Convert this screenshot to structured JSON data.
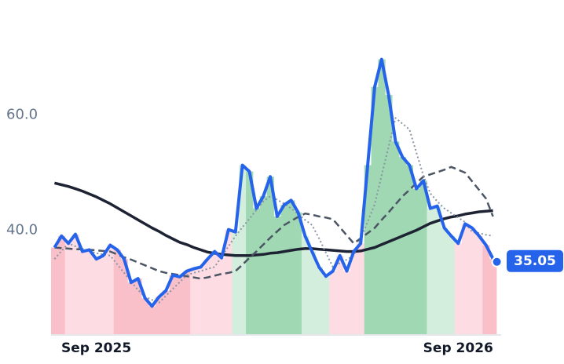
{
  "chart_data": {
    "type": "line",
    "categories": [
      null,
      null,
      null,
      null,
      null,
      null,
      "Sep 2025",
      null,
      null,
      null,
      null,
      null,
      null,
      null,
      null,
      null,
      null,
      null,
      null,
      null,
      null,
      null,
      null,
      null,
      null,
      null,
      null,
      null,
      null,
      null,
      null,
      null,
      null,
      null,
      null,
      null,
      null,
      null,
      null,
      null,
      null,
      null,
      null,
      null,
      null,
      null,
      null,
      null,
      null,
      null,
      null,
      null,
      null,
      null,
      null,
      null,
      null,
      null,
      "Sep 2026",
      null,
      null,
      null,
      null,
      null
    ],
    "series": [
      {
        "color": "#2563eb",
        "style": "solid",
        "width": 4,
        "values": [
          37,
          39,
          37.7,
          39.3,
          36.3,
          36.6,
          35,
          35.6,
          37.4,
          36.6,
          35,
          30.9,
          31.6,
          28.2,
          26.8,
          28.4,
          29.5,
          32.2,
          31.9,
          32.9,
          33.3,
          33.6,
          35,
          36.3,
          35.2,
          40.1,
          39.7,
          51.3,
          50.2,
          43.8,
          45.9,
          49.3,
          42.4,
          44.4,
          45.2,
          43.1,
          39,
          36.3,
          33.6,
          32,
          32.9,
          35.6,
          32.9,
          36.3,
          37.7,
          51.3,
          64.9,
          69.7,
          63.5,
          55.4,
          52.7,
          51.3,
          47.2,
          48.6,
          43.8,
          44.2,
          40.4,
          39,
          37.7,
          41.1,
          40.4,
          39,
          37.4,
          35.05
        ]
      },
      {
        "color": "#8a94a3",
        "style": "dotted",
        "width": 2,
        "values": [
          35,
          36.4,
          37.7,
          37.2,
          36.8,
          36.4,
          36,
          35.8,
          35.6,
          34.1,
          32.6,
          31.1,
          29.6,
          28.5,
          27.9,
          27.4,
          28.6,
          29.8,
          31,
          32.2,
          32.6,
          32.9,
          33.3,
          33.6,
          35.4,
          37.2,
          39,
          40.5,
          42,
          43.5,
          45,
          45.9,
          45.3,
          44.6,
          43.8,
          42.8,
          41.8,
          40.9,
          38.6,
          36.1,
          33.6,
          34.3,
          34.9,
          35.6,
          38.6,
          41.5,
          44.5,
          49.5,
          54.5,
          59.5,
          58.5,
          57.5,
          53.5,
          49.5,
          46.4,
          45,
          43.8,
          43,
          42.2,
          41.4,
          39.7,
          39.5,
          39.2,
          39
        ]
      },
      {
        "color": "#4b5563",
        "style": "dashed",
        "width": 2.5,
        "values": [
          37,
          36.9,
          36.8,
          36.7,
          36.7,
          36.6,
          36.5,
          36.4,
          36.3,
          35.8,
          35.3,
          34.9,
          34.4,
          33.9,
          33.4,
          32.9,
          32.6,
          32.4,
          32.2,
          32,
          31.8,
          31.6,
          31.8,
          32.1,
          32.4,
          32.6,
          32.9,
          34,
          35.2,
          36.3,
          37.5,
          38.7,
          39.8,
          40.9,
          41.6,
          42.3,
          42.9,
          42.7,
          42.4,
          42.2,
          41.9,
          40.5,
          39.1,
          37.7,
          38.6,
          39.5,
          40.4,
          41.8,
          43.1,
          44.5,
          45.9,
          47,
          48.2,
          49.3,
          49.7,
          50.1,
          50.5,
          51,
          50.5,
          50,
          48.5,
          47,
          45.5,
          42.4
        ]
      },
      {
        "color": "#1e2333",
        "style": "solid",
        "width": 3.5,
        "values": [
          48.2,
          47.9,
          47.6,
          47.2,
          46.8,
          46.3,
          45.8,
          45.2,
          44.6,
          43.9,
          43.2,
          42.5,
          41.8,
          41.1,
          40.4,
          39.8,
          39.1,
          38.5,
          37.9,
          37.5,
          37,
          36.6,
          36.2,
          36,
          35.8,
          35.7,
          35.6,
          35.6,
          35.6,
          35.7,
          35.8,
          36,
          36.1,
          36.3,
          36.5,
          36.7,
          36.8,
          36.8,
          36.7,
          36.6,
          36.5,
          36.4,
          36.3,
          36.3,
          36.4,
          36.7,
          37,
          37.5,
          38,
          38.5,
          39,
          39.5,
          40,
          40.6,
          41.2,
          41.6,
          42,
          42.3,
          42.5,
          42.8,
          43,
          43.2,
          43.3,
          43.4
        ]
      }
    ],
    "area_colors": [
      "#f9c0ca",
      "#f9c0ca",
      "#fddde3",
      "#fddde3",
      "#fddde3",
      "#fddde3",
      "#fddde3",
      "#fddde3",
      "#fddde3",
      "#f9c0ca",
      "#f9c0ca",
      "#f9c0ca",
      "#f9c0ca",
      "#f9c0ca",
      "#f9c0ca",
      "#f9c0ca",
      "#f9c0ca",
      "#f9c0ca",
      "#f9c0ca",
      "#f9c0ca",
      "#fddde3",
      "#fddde3",
      "#fddde3",
      "#fddde3",
      "#fddde3",
      "#fddde3",
      "#d3eedc",
      "#d3eedc",
      "#9fd8b3",
      "#9fd8b3",
      "#9fd8b3",
      "#9fd8b3",
      "#9fd8b3",
      "#9fd8b3",
      "#9fd8b3",
      "#9fd8b3",
      "#d3eedc",
      "#d3eedc",
      "#d3eedc",
      "#d3eedc",
      "#fddde3",
      "#fddde3",
      "#fddde3",
      "#fddde3",
      "#fddde3",
      "#9fd8b3",
      "#9fd8b3",
      "#9fd8b3",
      "#9fd8b3",
      "#9fd8b3",
      "#9fd8b3",
      "#9fd8b3",
      "#9fd8b3",
      "#9fd8b3",
      "#d3eedc",
      "#d3eedc",
      "#d3eedc",
      "#d3eedc",
      "#fddde3",
      "#fddde3",
      "#fddde3",
      "#fddde3",
      "#f9c0ca",
      "#f9c0ca"
    ],
    "ylim": [
      21.8,
      80
    ],
    "yticks": [
      {
        "value": 40,
        "label": "40.0"
      },
      {
        "value": 60,
        "label": "60.0"
      }
    ]
  }
}
